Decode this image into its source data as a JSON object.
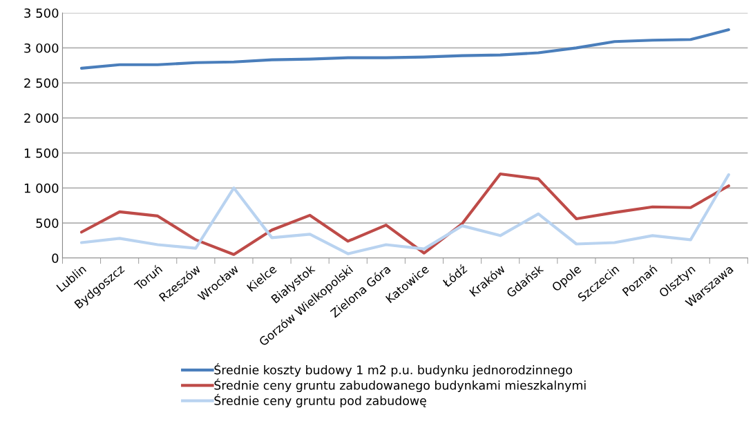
{
  "chart_data": {
    "type": "line",
    "categories": [
      "Lublin",
      "Bydgoszcz",
      "Toruń",
      "Rzeszów",
      "Wrocław",
      "Kielce",
      "Białystok",
      "Gorzów Wielkopolski",
      "Zielona Góra",
      "Katowice",
      "Łódź",
      "Kraków",
      "Gdańsk",
      "Opole",
      "Szczecin",
      "Poznań",
      "Olsztyn",
      "Warszawa"
    ],
    "series": [
      {
        "name": "Średnie koszty budowy 1 m2 p.u. budynku jednorodzinnego",
        "color": "#4a7ebb",
        "values": [
          2710,
          2760,
          2760,
          2790,
          2800,
          2830,
          2840,
          2860,
          2860,
          2870,
          2890,
          2900,
          2930,
          3000,
          3090,
          3110,
          3120,
          3260
        ]
      },
      {
        "name": "Średnie ceny gruntu zabudowanego budynkami mieszkalnymi",
        "color": "#be4b48",
        "values": [
          370,
          660,
          600,
          260,
          50,
          400,
          610,
          240,
          470,
          70,
          490,
          1200,
          1130,
          560,
          650,
          730,
          720,
          1030
        ]
      },
      {
        "name": "Średnie ceny gruntu pod zabudowę",
        "color": "#b9d3f0",
        "values": [
          220,
          280,
          190,
          140,
          1000,
          290,
          340,
          60,
          190,
          130,
          460,
          320,
          630,
          200,
          220,
          320,
          260,
          1190
        ]
      }
    ],
    "ylim": [
      0,
      3500
    ],
    "yticks": [
      0,
      500,
      {
        "value": 1000,
        "label": "1 000"
      },
      {
        "value": 1500,
        "label": "1 500"
      },
      {
        "value": 2000,
        "label": "2 000"
      },
      {
        "value": 2500,
        "label": "2 500"
      },
      {
        "value": 3000,
        "label": "3 000"
      },
      {
        "value": 3500,
        "label": "3 500"
      }
    ],
    "grid": "y",
    "legend": "bottom",
    "marker": "none",
    "line_style": "solid"
  }
}
